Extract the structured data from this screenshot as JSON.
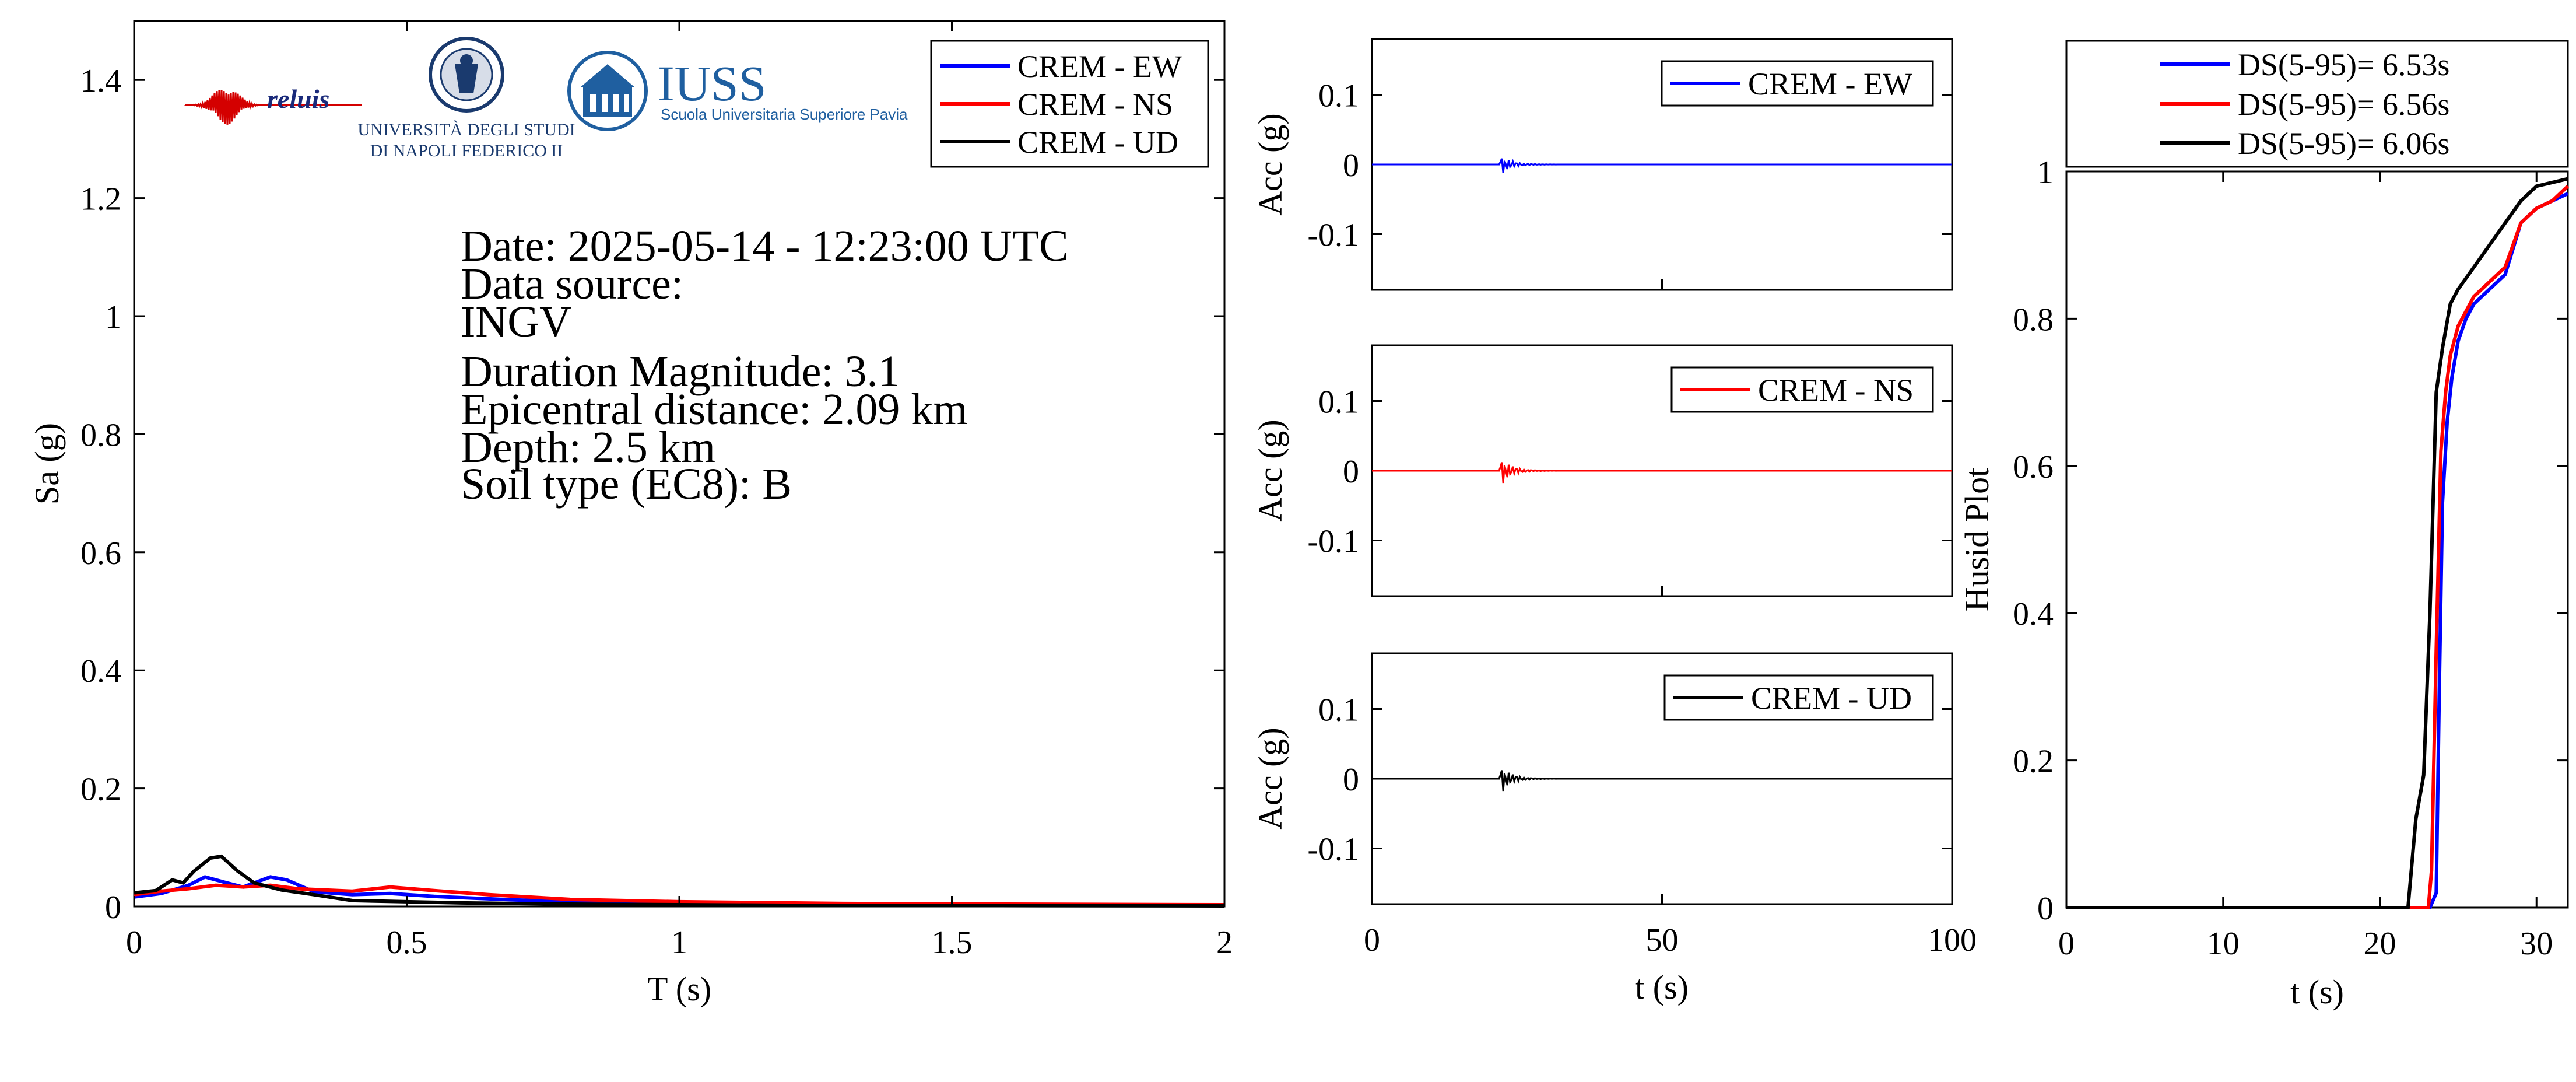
{
  "info": {
    "date": "Date: 2025-05-14 - 12:23:00 UTC",
    "source_label": "Data source:",
    "source": "INGV",
    "magnitude": "Duration Magnitude: 3.1",
    "distance": "Epicentral distance: 2.09 km",
    "depth": "Depth: 2.5 km",
    "soil": "Soil type (EC8): B"
  },
  "logos": {
    "reluis": "reluis",
    "unina_line1": "UNIVERSITÀ DEGLI STUDI",
    "unina_line2": "DI NAPOLI FEDERICO II",
    "iuss": "IUSS",
    "iuss_sub": "Scuola Universitaria Superiore Pavia"
  },
  "colors": {
    "ew": "#0000ff",
    "ns": "#ff0000",
    "ud": "#000000"
  },
  "chart_data": [
    {
      "type": "line",
      "panel": "response-spectrum",
      "xlabel": "T (s)",
      "ylabel": "Sa (g)",
      "xlim": [
        0,
        2
      ],
      "ylim": [
        0,
        1.5
      ],
      "xticks": [
        "0",
        "0.5",
        "1",
        "1.5",
        "2"
      ],
      "xtick_values": [
        0,
        0.5,
        1,
        1.5,
        2
      ],
      "yticks": [
        "0",
        "0.2",
        "0.4",
        "0.6",
        "0.8",
        "1",
        "1.2",
        "1.4"
      ],
      "ytick_values": [
        0,
        0.2,
        0.4,
        0.6,
        0.8,
        1,
        1.2,
        1.4
      ],
      "legend": "top-right",
      "series": [
        {
          "name": "CREM - EW",
          "x": [
            0,
            0.05,
            0.1,
            0.13,
            0.17,
            0.2,
            0.25,
            0.28,
            0.33,
            0.4,
            0.47,
            0.55,
            0.7,
            0.9,
            1.2,
            1.6,
            2.0
          ],
          "y": [
            0.016,
            0.022,
            0.036,
            0.05,
            0.04,
            0.033,
            0.05,
            0.045,
            0.025,
            0.02,
            0.022,
            0.017,
            0.011,
            0.007,
            0.004,
            0.003,
            0.002
          ]
        },
        {
          "name": "CREM - NS",
          "x": [
            0,
            0.05,
            0.1,
            0.15,
            0.2,
            0.25,
            0.3,
            0.35,
            0.4,
            0.47,
            0.55,
            0.65,
            0.8,
            1.0,
            1.3,
            1.6,
            2.0
          ],
          "y": [
            0.02,
            0.026,
            0.03,
            0.036,
            0.033,
            0.036,
            0.03,
            0.028,
            0.026,
            0.033,
            0.027,
            0.02,
            0.012,
            0.008,
            0.005,
            0.004,
            0.003
          ]
        },
        {
          "name": "CREM - UD",
          "x": [
            0,
            0.04,
            0.07,
            0.09,
            0.11,
            0.14,
            0.16,
            0.19,
            0.22,
            0.27,
            0.33,
            0.4,
            0.5,
            0.6,
            0.8,
            1.2,
            2.0
          ],
          "y": [
            0.023,
            0.027,
            0.045,
            0.04,
            0.06,
            0.082,
            0.085,
            0.06,
            0.04,
            0.028,
            0.02,
            0.01,
            0.008,
            0.006,
            0.004,
            0.002,
            0.001
          ]
        }
      ]
    },
    {
      "type": "line",
      "panel": "accelerogram-ew",
      "xlabel": "",
      "ylabel": "Acc (g)",
      "xlim": [
        0,
        100
      ],
      "ylim": [
        -0.18,
        0.18
      ],
      "yticks": [
        "0.1",
        "0",
        "-0.1"
      ],
      "ytick_values": [
        0.1,
        0,
        -0.1
      ],
      "legend": "top-right",
      "series": [
        {
          "name": "CREM - EW",
          "peak": 0.014,
          "event_start_s": 22,
          "event_end_s": 32
        }
      ]
    },
    {
      "type": "line",
      "panel": "accelerogram-ns",
      "xlabel": "",
      "ylabel": "Acc (g)",
      "xlim": [
        0,
        100
      ],
      "ylim": [
        -0.18,
        0.18
      ],
      "yticks": [
        "0.1",
        "0",
        "-0.1"
      ],
      "ytick_values": [
        0.1,
        0,
        -0.1
      ],
      "legend": "top-right",
      "series": [
        {
          "name": "CREM - NS",
          "peak": 0.02,
          "event_start_s": 22,
          "event_end_s": 32
        }
      ]
    },
    {
      "type": "line",
      "panel": "accelerogram-ud",
      "xlabel": "t (s)",
      "ylabel": "Acc (g)",
      "xlim": [
        0,
        100
      ],
      "ylim": [
        -0.18,
        0.18
      ],
      "xticks": [
        "0",
        "50",
        "100"
      ],
      "xtick_values": [
        0,
        50,
        100
      ],
      "yticks": [
        "0.1",
        "0",
        "-0.1"
      ],
      "ytick_values": [
        0.1,
        0,
        -0.1
      ],
      "legend": "top-right",
      "series": [
        {
          "name": "CREM - UD",
          "peak": 0.02,
          "event_start_s": 22,
          "event_end_s": 32
        }
      ]
    },
    {
      "type": "line",
      "panel": "husid",
      "xlabel": "t (s)",
      "ylabel": "Husid Plot",
      "xlim": [
        0,
        32
      ],
      "ylim": [
        0,
        1
      ],
      "xticks": [
        "0",
        "10",
        "20",
        "30"
      ],
      "xtick_values": [
        0,
        10,
        20,
        30
      ],
      "yticks": [
        "0",
        "0.2",
        "0.4",
        "0.6",
        "0.8",
        "1"
      ],
      "ytick_values": [
        0,
        0.2,
        0.4,
        0.6,
        0.8,
        1
      ],
      "legend": "top (outside)",
      "series": [
        {
          "name": "DS(5-95)= 6.53s",
          "x": [
            0,
            23.2,
            23.6,
            23.8,
            24.0,
            24.3,
            24.6,
            25.0,
            25.5,
            26.0,
            27.0,
            28.0,
            29.0,
            30.0,
            31.0,
            32.0
          ],
          "y": [
            0,
            0,
            0.02,
            0.3,
            0.55,
            0.66,
            0.72,
            0.77,
            0.8,
            0.82,
            0.84,
            0.86,
            0.93,
            0.95,
            0.96,
            0.97
          ]
        },
        {
          "name": "DS(5-95)= 6.56s",
          "x": [
            0,
            23.1,
            23.3,
            23.6,
            23.9,
            24.2,
            24.5,
            25.0,
            25.5,
            26.0,
            27.0,
            28.0,
            29.0,
            30.0,
            31.0,
            32.0
          ],
          "y": [
            0,
            0,
            0.05,
            0.35,
            0.62,
            0.7,
            0.75,
            0.79,
            0.81,
            0.83,
            0.85,
            0.87,
            0.93,
            0.95,
            0.96,
            0.98
          ]
        },
        {
          "name": "DS(5-95)= 6.06s",
          "x": [
            0,
            21.8,
            22.3,
            22.8,
            23.2,
            23.6,
            24.0,
            24.5,
            25.0,
            26.0,
            27.0,
            28.0,
            29.0,
            30.0,
            31.0,
            32.0
          ],
          "y": [
            0,
            0,
            0.12,
            0.18,
            0.4,
            0.7,
            0.76,
            0.82,
            0.84,
            0.87,
            0.9,
            0.93,
            0.96,
            0.98,
            0.985,
            0.99
          ]
        }
      ]
    }
  ]
}
